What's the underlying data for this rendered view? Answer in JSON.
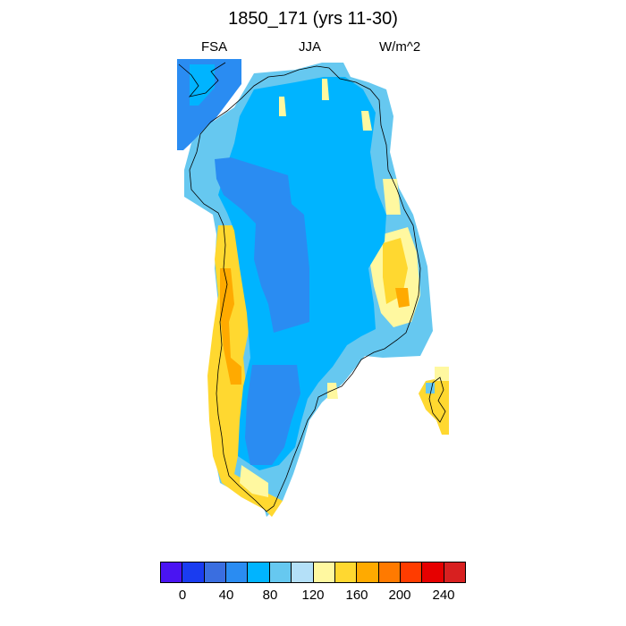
{
  "title": "1850_171 (yrs 11-30)",
  "left_label": "FSA",
  "center_label": "JJA",
  "right_label": "W/m^2",
  "colorbar": {
    "colors": [
      "#4a14f2",
      "#1a3cf0",
      "#3a6ee0",
      "#2a8cf2",
      "#00b4ff",
      "#66c8f0",
      "#b4e0f8",
      "#fff8a0",
      "#ffd830",
      "#ffaa00",
      "#ff7a00",
      "#ff3c00",
      "#e60000",
      "#d82020"
    ],
    "tick_labels": [
      "0",
      "40",
      "80",
      "120",
      "160",
      "200",
      "240"
    ]
  },
  "map": {
    "region": "Greenland",
    "variable": "FSA",
    "season": "JJA",
    "units": "W/m^2"
  }
}
